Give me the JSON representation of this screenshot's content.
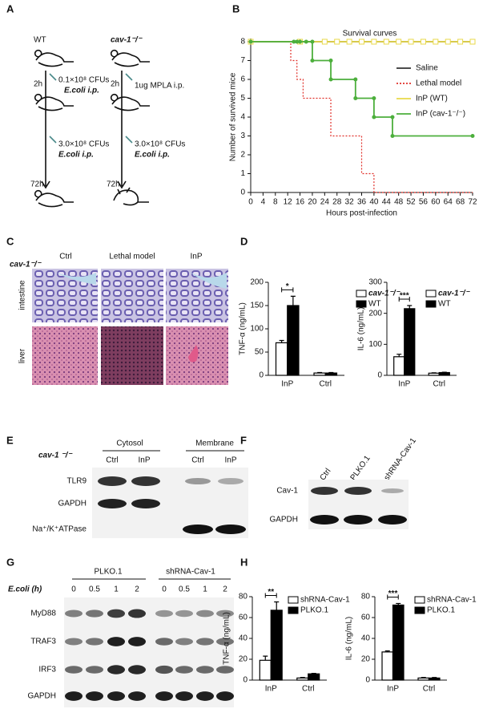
{
  "panel_labels": [
    "A",
    "B",
    "C",
    "D",
    "E",
    "F",
    "G",
    "H"
  ],
  "panel_a": {
    "left": {
      "title": "WT",
      "t1": "2h",
      "dose1": "0.1×10⁸ CFUs",
      "route1": "E.coli i.p.",
      "dose2": "3.0×10⁸ CFUs",
      "route2": "E.coli i.p.",
      "t2": "72h"
    },
    "right": {
      "title": "cav-1⁻/⁻",
      "t1": "2h",
      "dose1": "1ug MPLA i.p.",
      "dose2": "3.0×10⁸ CFUs",
      "route2": "E.coli i.p.",
      "t2": "72h"
    }
  },
  "panel_c": {
    "genotype": "cav-1⁻/⁻",
    "columns": [
      "Ctrl",
      "Lethal model",
      "InP"
    ],
    "rows": [
      "intestine",
      "liver"
    ]
  },
  "panel_e": {
    "genotype": "cav-1 ⁻/⁻",
    "groups": [
      "Cytosol",
      "Membrane"
    ],
    "lanes": [
      "Ctrl",
      "InP",
      "Ctrl",
      "InP"
    ],
    "rows": [
      "TLR9",
      "GAPDH",
      "Na⁺/K⁺ATPase"
    ]
  },
  "panel_f": {
    "lanes": [
      "Ctrl",
      "PLKO.1",
      "shRNA-Cav-1"
    ],
    "rows": [
      "Cav-1",
      "GAPDH"
    ]
  },
  "panel_g": {
    "groups": [
      "PLKO.1",
      "shRNA-Cav-1"
    ],
    "time_label": "E.coli (h)",
    "lanes": [
      "0",
      "0.5",
      "1",
      "2",
      "0",
      "0.5",
      "1",
      "2"
    ],
    "rows": [
      "MyD88",
      "TRAF3",
      "IRF3",
      "GAPDH"
    ]
  },
  "chart_data": [
    {
      "type": "line",
      "title": "Survival curves",
      "x_label": "Hours post-infection",
      "y_label": "Number of survived mice",
      "xlim": [
        0,
        72
      ],
      "xticks": [
        0,
        4,
        8,
        12,
        16,
        20,
        24,
        28,
        32,
        36,
        40,
        44,
        48,
        52,
        56,
        60,
        64,
        68,
        72
      ],
      "ylim": [
        0,
        8
      ],
      "yticks": [
        0,
        1,
        2,
        3,
        4,
        5,
        6,
        7,
        8
      ],
      "legend": "right",
      "series": [
        {
          "name": "Saline",
          "color": "#333333",
          "x": [
            0,
            72
          ],
          "values": [
            8,
            8
          ]
        },
        {
          "name": "Lethal model",
          "color": "#e0302a",
          "dash": true,
          "x": [
            0,
            13,
            13,
            15,
            15,
            17,
            17,
            26,
            26,
            36,
            36,
            40,
            40,
            72
          ],
          "values": [
            8,
            8,
            7,
            7,
            6,
            6,
            5,
            5,
            3,
            3,
            1,
            1,
            0,
            0
          ]
        },
        {
          "name": "InP (WT)",
          "color": "#e8d94a",
          "marker": "square",
          "x": [
            0,
            16,
            24,
            28,
            32,
            36,
            40,
            44,
            48,
            52,
            56,
            60,
            64,
            68,
            72
          ],
          "values": [
            8,
            8,
            8,
            8,
            8,
            8,
            8,
            8,
            8,
            8,
            8,
            8,
            8,
            8,
            8
          ]
        },
        {
          "name": "InP (cav-1⁻/⁻)",
          "color": "#4caf3c",
          "marker": "dot",
          "x": [
            0,
            14,
            15,
            16,
            18,
            20,
            20,
            26,
            26,
            34,
            34,
            40,
            40,
            46,
            46,
            72
          ],
          "values": [
            8,
            8,
            8,
            8,
            8,
            8,
            7,
            7,
            6,
            6,
            5,
            5,
            4,
            4,
            3,
            3
          ]
        }
      ]
    },
    {
      "type": "bar",
      "y_label": "TNF-α (ng/mL)",
      "categories": [
        "InP",
        "Ctrl"
      ],
      "ylim": [
        0,
        200
      ],
      "yticks": [
        0,
        50,
        100,
        150,
        200
      ],
      "significance": "*",
      "series": [
        {
          "name": "cav-1⁻/⁻",
          "color": "#ffffff",
          "values": [
            70,
            5
          ],
          "errors": [
            5,
            1
          ]
        },
        {
          "name": "WT",
          "color": "#000000",
          "values": [
            150,
            5
          ],
          "errors": [
            20,
            1
          ]
        }
      ]
    },
    {
      "type": "bar",
      "y_label": "IL-6 (ng/mL)",
      "categories": [
        "InP",
        "Ctrl"
      ],
      "ylim": [
        0,
        300
      ],
      "yticks": [
        0,
        100,
        200,
        300
      ],
      "significance": "***",
      "series": [
        {
          "name": "cav-1⁻/⁻",
          "color": "#ffffff",
          "values": [
            60,
            7
          ],
          "errors": [
            8,
            1
          ]
        },
        {
          "name": "WT",
          "color": "#000000",
          "values": [
            215,
            9
          ],
          "errors": [
            10,
            1
          ]
        }
      ]
    },
    {
      "type": "bar",
      "y_label": "TNF-α (ng/mL)",
      "categories": [
        "InP",
        "Ctrl"
      ],
      "ylim": [
        0,
        80
      ],
      "yticks": [
        0,
        20,
        40,
        60,
        80
      ],
      "significance": "**",
      "series": [
        {
          "name": "shRNA-Cav-1",
          "color": "#ffffff",
          "values": [
            19,
            2
          ],
          "errors": [
            4,
            0.5
          ]
        },
        {
          "name": "PLKO.1",
          "color": "#000000",
          "values": [
            67,
            6
          ],
          "errors": [
            8,
            0.5
          ]
        }
      ]
    },
    {
      "type": "bar",
      "y_label": "IL-6 (ng/mL)",
      "categories": [
        "InP",
        "Ctrl"
      ],
      "ylim": [
        0,
        80
      ],
      "yticks": [
        0,
        20,
        40,
        60,
        80
      ],
      "significance": "***",
      "series": [
        {
          "name": "shRNA-Cav-1",
          "color": "#ffffff",
          "values": [
            27,
            2
          ],
          "errors": [
            1,
            0.5
          ]
        },
        {
          "name": "PLKO.1",
          "color": "#000000",
          "values": [
            72,
            2
          ],
          "errors": [
            1.5,
            0.5
          ]
        }
      ]
    }
  ]
}
